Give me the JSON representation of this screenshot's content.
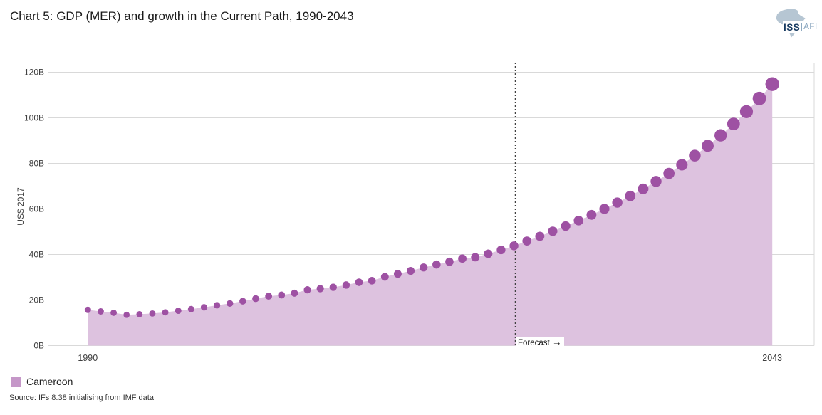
{
  "title": "Chart 5: GDP (MER) and growth in the Current Path, 1990-2043",
  "logo": {
    "iss": "ISS",
    "afi": "AFI"
  },
  "chart_data": {
    "type": "area",
    "title": "Chart 5: GDP (MER) and growth in the Current Path, 1990-2043",
    "series_name": "Cameroon",
    "ylabel": "US$ 2017",
    "ylim": [
      0,
      120
    ],
    "y_tick_values": [
      0,
      20,
      40,
      60,
      80,
      100,
      120
    ],
    "y_tick_labels": [
      "0B",
      "20B",
      "40B",
      "60B",
      "80B",
      "100B",
      "120B"
    ],
    "x_tick_labels": [
      "1990",
      "2043"
    ],
    "grid": "horizontal",
    "legend_position": "bottom-left",
    "x": [
      1990,
      1991,
      1992,
      1993,
      1994,
      1995,
      1996,
      1997,
      1998,
      1999,
      2000,
      2001,
      2002,
      2003,
      2004,
      2005,
      2006,
      2007,
      2008,
      2009,
      2010,
      2011,
      2012,
      2013,
      2014,
      2015,
      2016,
      2017,
      2018,
      2019,
      2020,
      2021,
      2022,
      2023,
      2024,
      2025,
      2026,
      2027,
      2028,
      2029,
      2030,
      2031,
      2032,
      2033,
      2034,
      2035,
      2036,
      2037,
      2038,
      2039,
      2040,
      2041,
      2042,
      2043
    ],
    "values": [
      15.7,
      15.0,
      14.4,
      13.5,
      13.8,
      14.1,
      14.6,
      15.3,
      16.0,
      16.8,
      17.7,
      18.5,
      19.5,
      20.6,
      21.7,
      22.2,
      23.0,
      24.5,
      25.0,
      25.6,
      26.6,
      27.8,
      28.5,
      30.2,
      31.5,
      32.8,
      34.3,
      35.6,
      36.8,
      38.2,
      38.8,
      40.3,
      42.0,
      43.8,
      45.9,
      48.0,
      50.2,
      52.5,
      54.9,
      57.4,
      60.0,
      62.8,
      65.7,
      68.8,
      72.1,
      75.6,
      79.4,
      83.4,
      87.7,
      92.3,
      97.3,
      102.7,
      108.5,
      114.8
    ],
    "forecast": {
      "label": "Forecast",
      "arrow": "→",
      "at_year": 2023.1
    },
    "colors": {
      "marker": "#9e51a3",
      "fill": "#ddc2df",
      "legend_swatch": "#c597c8",
      "grid": "#d9d9d9",
      "forecast_line": "#404040"
    }
  },
  "legend": {
    "label": "Cameroon"
  },
  "source": "Source: IFs 8.38 initialising from IMF data"
}
